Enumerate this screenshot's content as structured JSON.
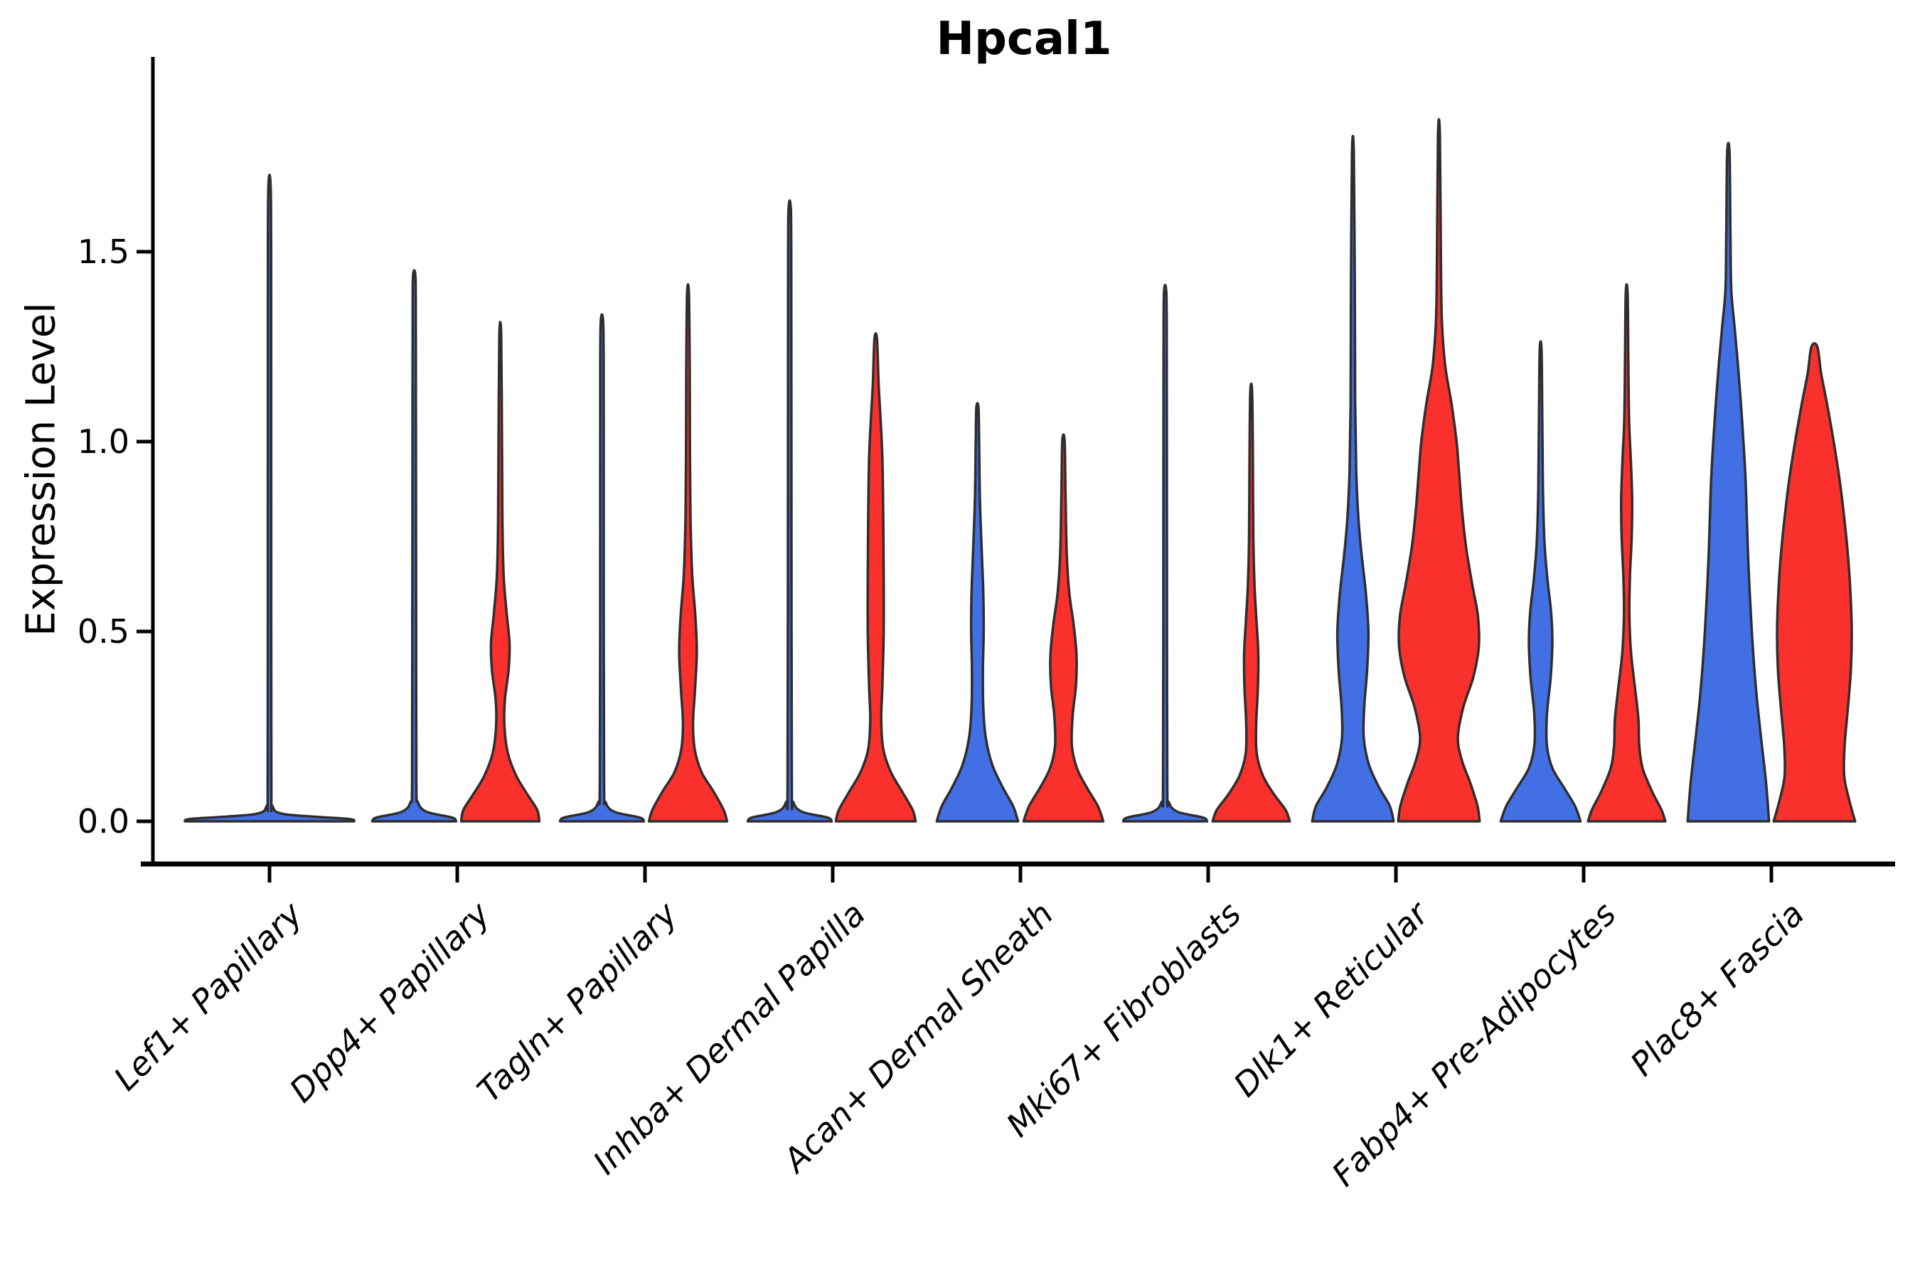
{
  "chart_data": {
    "type": "violin",
    "title": "Hpcal1",
    "ylabel": "Expression Level",
    "xlabel": "",
    "ylim": [
      0,
      2.0
    ],
    "grid": false,
    "legend": "none",
    "ytick_values": [
      0,
      0.5,
      1.0,
      1.5
    ],
    "ytick_labels": [
      "0.0",
      "0.5",
      "1.0",
      "1.5"
    ],
    "categories": [
      "Lef1+ Papillary",
      "Dpp4+ Papillary",
      "Tagln+ Papillary",
      "Inhba+ Dermal Papilla",
      "Acan+ Dermal Sheath",
      "Mki67+ Fibroblasts",
      "Dlk1+ Reticular",
      "Fabp4+ Pre-Adipocytes",
      "Plac8+ Fascia"
    ],
    "series": [
      {
        "id": "blue",
        "color": "#4270E4"
      },
      {
        "id": "red",
        "color": "#FA302D"
      }
    ],
    "outline_color": "#2E2E2E",
    "axis_color": "#000000",
    "violins": [
      {
        "category": 0,
        "label": "Lef1+ Papillary",
        "series": "blue",
        "side": "center",
        "max": 1.68,
        "profile": [
          [
            0,
            1.0
          ],
          [
            0.006,
            0.95
          ],
          [
            0.012,
            0.55
          ],
          [
            0.02,
            0.15
          ],
          [
            0.04,
            0.035
          ],
          [
            0.1,
            0.022
          ],
          [
            0.8,
            0.02
          ],
          [
            1.5,
            0.019
          ],
          [
            1.68,
            0.012
          ]
        ]
      },
      {
        "category": 1,
        "label": "Dpp4+ Papillary",
        "series": "blue",
        "side": "left",
        "max": 1.44,
        "profile": [
          [
            0,
            1.0
          ],
          [
            0.01,
            0.9
          ],
          [
            0.025,
            0.3
          ],
          [
            0.05,
            0.09
          ],
          [
            0.1,
            0.05
          ],
          [
            0.5,
            0.045
          ],
          [
            1.0,
            0.04
          ],
          [
            1.35,
            0.038
          ],
          [
            1.44,
            0.025
          ]
        ]
      },
      {
        "category": 1,
        "label": "Dpp4+ Papillary",
        "series": "red",
        "side": "right",
        "max": 1.28,
        "profile": [
          [
            0,
            0.93
          ],
          [
            0.03,
            0.88
          ],
          [
            0.07,
            0.65
          ],
          [
            0.12,
            0.38
          ],
          [
            0.18,
            0.18
          ],
          [
            0.25,
            0.1
          ],
          [
            0.32,
            0.11
          ],
          [
            0.4,
            0.2
          ],
          [
            0.47,
            0.22
          ],
          [
            0.55,
            0.15
          ],
          [
            0.65,
            0.08
          ],
          [
            0.8,
            0.05
          ],
          [
            1.0,
            0.04
          ],
          [
            1.28,
            0.022
          ]
        ]
      },
      {
        "category": 2,
        "label": "Tagln+ Papillary",
        "series": "blue",
        "side": "left",
        "max": 1.32,
        "profile": [
          [
            0,
            1.0
          ],
          [
            0.01,
            0.9
          ],
          [
            0.025,
            0.3
          ],
          [
            0.05,
            0.09
          ],
          [
            0.1,
            0.05
          ],
          [
            0.6,
            0.042
          ],
          [
            1.2,
            0.04
          ],
          [
            1.32,
            0.025
          ]
        ]
      },
      {
        "category": 2,
        "label": "Tagln+ Papillary",
        "series": "red",
        "side": "right",
        "max": 1.39,
        "profile": [
          [
            0,
            0.93
          ],
          [
            0.03,
            0.85
          ],
          [
            0.08,
            0.6
          ],
          [
            0.13,
            0.32
          ],
          [
            0.19,
            0.16
          ],
          [
            0.26,
            0.12
          ],
          [
            0.35,
            0.17
          ],
          [
            0.45,
            0.21
          ],
          [
            0.55,
            0.17
          ],
          [
            0.65,
            0.1
          ],
          [
            0.8,
            0.06
          ],
          [
            1.0,
            0.045
          ],
          [
            1.2,
            0.04
          ],
          [
            1.39,
            0.022
          ]
        ]
      },
      {
        "category": 3,
        "label": "Inhba+ Dermal Papilla",
        "series": "blue",
        "side": "left",
        "max": 1.62,
        "profile": [
          [
            0,
            1.0
          ],
          [
            0.01,
            0.9
          ],
          [
            0.025,
            0.3
          ],
          [
            0.05,
            0.09
          ],
          [
            0.1,
            0.05
          ],
          [
            0.8,
            0.042
          ],
          [
            1.5,
            0.038
          ],
          [
            1.62,
            0.022
          ]
        ]
      },
      {
        "category": 3,
        "label": "Inhba+ Dermal Papilla",
        "series": "red",
        "side": "right",
        "max": 1.27,
        "profile": [
          [
            0,
            0.95
          ],
          [
            0.03,
            0.88
          ],
          [
            0.08,
            0.62
          ],
          [
            0.13,
            0.36
          ],
          [
            0.19,
            0.18
          ],
          [
            0.27,
            0.13
          ],
          [
            0.36,
            0.16
          ],
          [
            0.5,
            0.19
          ],
          [
            0.65,
            0.19
          ],
          [
            0.8,
            0.18
          ],
          [
            0.95,
            0.16
          ],
          [
            1.05,
            0.12
          ],
          [
            1.15,
            0.07
          ],
          [
            1.27,
            0.03
          ]
        ]
      },
      {
        "category": 4,
        "label": "Acan+ Dermal Sheath",
        "series": "blue",
        "side": "left",
        "max": 1.09,
        "profile": [
          [
            0,
            0.97
          ],
          [
            0.04,
            0.85
          ],
          [
            0.09,
            0.6
          ],
          [
            0.15,
            0.35
          ],
          [
            0.22,
            0.2
          ],
          [
            0.3,
            0.14
          ],
          [
            0.4,
            0.13
          ],
          [
            0.5,
            0.15
          ],
          [
            0.6,
            0.14
          ],
          [
            0.72,
            0.1
          ],
          [
            0.85,
            0.06
          ],
          [
            1.0,
            0.04
          ],
          [
            1.09,
            0.025
          ]
        ]
      },
      {
        "category": 4,
        "label": "Acan+ Dermal Sheath",
        "series": "red",
        "side": "right",
        "max": 1.0,
        "profile": [
          [
            0,
            0.95
          ],
          [
            0.04,
            0.82
          ],
          [
            0.09,
            0.55
          ],
          [
            0.14,
            0.32
          ],
          [
            0.2,
            0.2
          ],
          [
            0.28,
            0.22
          ],
          [
            0.36,
            0.3
          ],
          [
            0.44,
            0.31
          ],
          [
            0.52,
            0.24
          ],
          [
            0.6,
            0.14
          ],
          [
            0.7,
            0.08
          ],
          [
            0.85,
            0.05
          ],
          [
            1.0,
            0.028
          ]
        ]
      },
      {
        "category": 5,
        "label": "Mki67+ Fibroblasts",
        "series": "blue",
        "side": "left",
        "max": 1.4,
        "profile": [
          [
            0,
            1.0
          ],
          [
            0.01,
            0.9
          ],
          [
            0.025,
            0.3
          ],
          [
            0.05,
            0.09
          ],
          [
            0.1,
            0.05
          ],
          [
            0.7,
            0.042
          ],
          [
            1.3,
            0.038
          ],
          [
            1.4,
            0.022
          ]
        ]
      },
      {
        "category": 5,
        "label": "Mki67+ Fibroblasts",
        "series": "red",
        "side": "right",
        "max": 1.13,
        "profile": [
          [
            0,
            0.92
          ],
          [
            0.03,
            0.82
          ],
          [
            0.07,
            0.55
          ],
          [
            0.12,
            0.28
          ],
          [
            0.18,
            0.13
          ],
          [
            0.26,
            0.12
          ],
          [
            0.35,
            0.16
          ],
          [
            0.44,
            0.17
          ],
          [
            0.52,
            0.13
          ],
          [
            0.62,
            0.08
          ],
          [
            0.75,
            0.05
          ],
          [
            0.95,
            0.04
          ],
          [
            1.13,
            0.022
          ]
        ]
      },
      {
        "category": 6,
        "label": "Dlk1+ Reticular",
        "series": "blue",
        "side": "left",
        "max": 1.76,
        "profile": [
          [
            0,
            0.97
          ],
          [
            0.04,
            0.88
          ],
          [
            0.09,
            0.62
          ],
          [
            0.15,
            0.38
          ],
          [
            0.22,
            0.26
          ],
          [
            0.3,
            0.27
          ],
          [
            0.4,
            0.34
          ],
          [
            0.5,
            0.37
          ],
          [
            0.6,
            0.31
          ],
          [
            0.7,
            0.21
          ],
          [
            0.8,
            0.13
          ],
          [
            0.92,
            0.08
          ],
          [
            1.1,
            0.055
          ],
          [
            1.4,
            0.045
          ],
          [
            1.76,
            0.022
          ]
        ]
      },
      {
        "category": 6,
        "label": "Dlk1+ Reticular",
        "series": "red",
        "side": "right",
        "max": 1.81,
        "profile": [
          [
            0,
            0.97
          ],
          [
            0.04,
            0.92
          ],
          [
            0.1,
            0.75
          ],
          [
            0.16,
            0.55
          ],
          [
            0.22,
            0.45
          ],
          [
            0.3,
            0.58
          ],
          [
            0.38,
            0.82
          ],
          [
            0.46,
            0.95
          ],
          [
            0.54,
            0.93
          ],
          [
            0.62,
            0.8
          ],
          [
            0.72,
            0.65
          ],
          [
            0.82,
            0.55
          ],
          [
            0.92,
            0.48
          ],
          [
            1.0,
            0.42
          ],
          [
            1.1,
            0.3
          ],
          [
            1.2,
            0.15
          ],
          [
            1.32,
            0.07
          ],
          [
            1.5,
            0.045
          ],
          [
            1.81,
            0.022
          ]
        ]
      },
      {
        "category": 7,
        "label": "Fabp4+ Pre-Adipocytes",
        "series": "blue",
        "side": "left",
        "max": 1.24,
        "profile": [
          [
            0,
            0.95
          ],
          [
            0.04,
            0.82
          ],
          [
            0.09,
            0.55
          ],
          [
            0.14,
            0.28
          ],
          [
            0.2,
            0.15
          ],
          [
            0.28,
            0.15
          ],
          [
            0.38,
            0.24
          ],
          [
            0.47,
            0.28
          ],
          [
            0.55,
            0.25
          ],
          [
            0.64,
            0.16
          ],
          [
            0.74,
            0.09
          ],
          [
            0.88,
            0.055
          ],
          [
            1.05,
            0.04
          ],
          [
            1.24,
            0.022
          ]
        ]
      },
      {
        "category": 7,
        "label": "Fabp4+ Pre-Adipocytes",
        "series": "red",
        "side": "right",
        "max": 1.39,
        "profile": [
          [
            0,
            0.92
          ],
          [
            0.03,
            0.83
          ],
          [
            0.08,
            0.6
          ],
          [
            0.14,
            0.38
          ],
          [
            0.2,
            0.3
          ],
          [
            0.27,
            0.28
          ],
          [
            0.35,
            0.2
          ],
          [
            0.45,
            0.1
          ],
          [
            0.55,
            0.065
          ],
          [
            0.65,
            0.08
          ],
          [
            0.75,
            0.12
          ],
          [
            0.85,
            0.13
          ],
          [
            0.95,
            0.1
          ],
          [
            1.05,
            0.06
          ],
          [
            1.2,
            0.04
          ],
          [
            1.39,
            0.022
          ]
        ]
      },
      {
        "category": 8,
        "label": "Plac8+ Fascia",
        "series": "blue",
        "side": "left",
        "max": 1.76,
        "profile": [
          [
            0,
            0.97
          ],
          [
            0.1,
            0.9
          ],
          [
            0.2,
            0.8
          ],
          [
            0.3,
            0.7
          ],
          [
            0.4,
            0.62
          ],
          [
            0.5,
            0.56
          ],
          [
            0.6,
            0.51
          ],
          [
            0.7,
            0.47
          ],
          [
            0.8,
            0.44
          ],
          [
            0.9,
            0.41
          ],
          [
            1.0,
            0.36
          ],
          [
            1.1,
            0.3
          ],
          [
            1.2,
            0.23
          ],
          [
            1.3,
            0.15
          ],
          [
            1.4,
            0.07
          ],
          [
            1.55,
            0.05
          ],
          [
            1.76,
            0.028
          ]
        ]
      },
      {
        "category": 8,
        "label": "Plac8+ Fascia",
        "series": "red",
        "side": "right",
        "max": 1.25,
        "profile": [
          [
            0,
            0.97
          ],
          [
            0.06,
            0.82
          ],
          [
            0.12,
            0.71
          ],
          [
            0.2,
            0.72
          ],
          [
            0.3,
            0.8
          ],
          [
            0.4,
            0.87
          ],
          [
            0.5,
            0.89
          ],
          [
            0.6,
            0.86
          ],
          [
            0.7,
            0.8
          ],
          [
            0.8,
            0.71
          ],
          [
            0.9,
            0.6
          ],
          [
            1.0,
            0.46
          ],
          [
            1.1,
            0.3
          ],
          [
            1.18,
            0.16
          ],
          [
            1.25,
            0.07
          ]
        ]
      }
    ]
  }
}
